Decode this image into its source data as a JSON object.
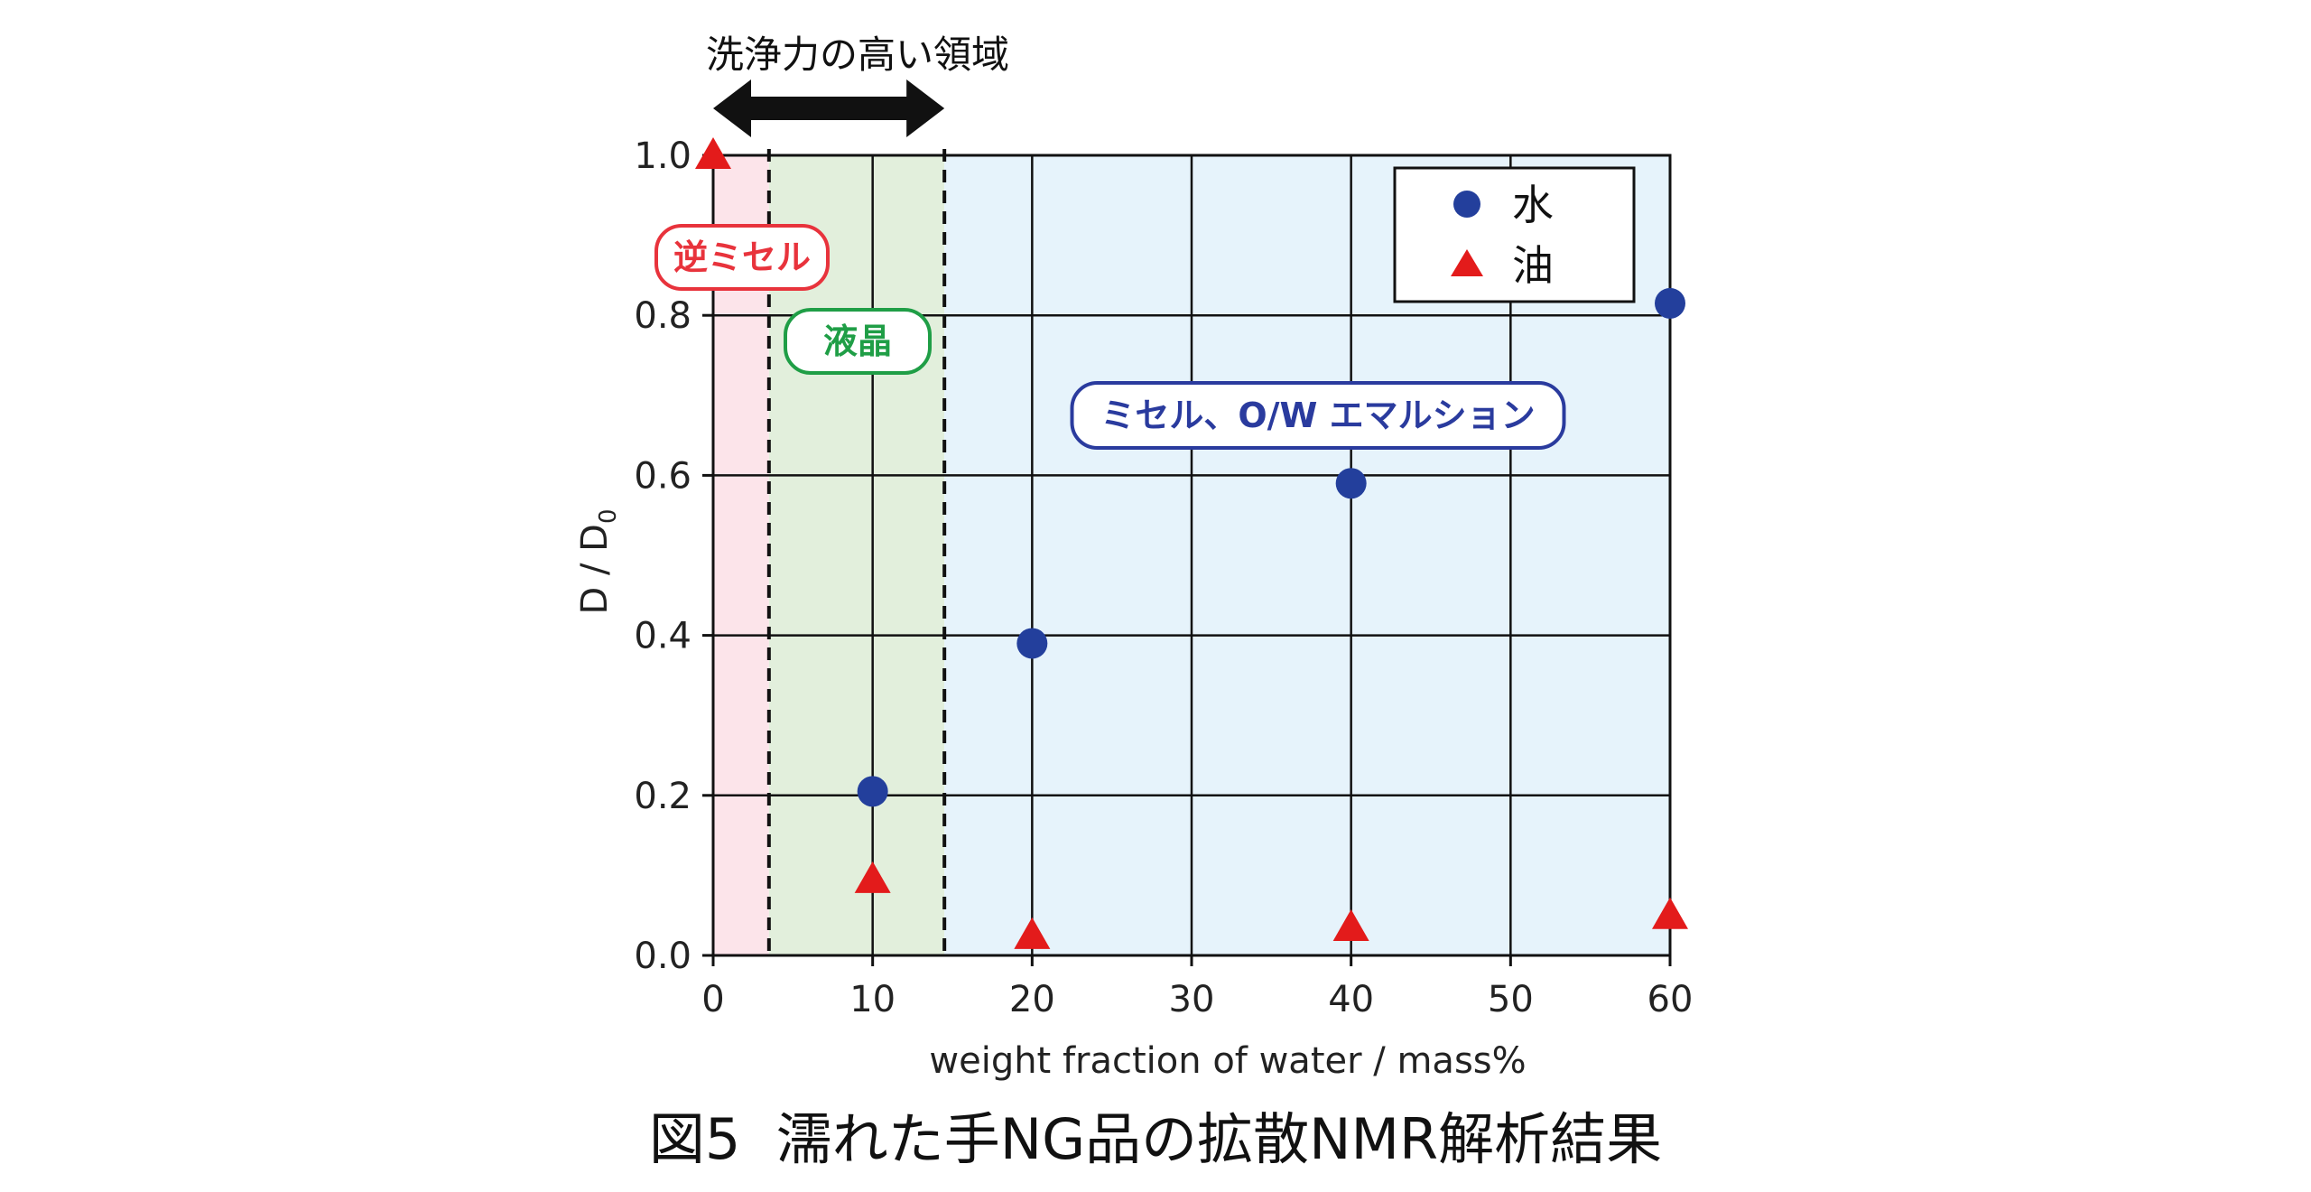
{
  "figure": {
    "caption": "図5  濡れた手NG品の拡散NMR解析結果",
    "top_label": "洗浄力の高い領域"
  },
  "chart_data": {
    "type": "scatter",
    "xlabel": "weight fraction of water / mass%",
    "ylabel": "D / D",
    "ylabel_subscript": "0",
    "xlim": [
      0,
      60
    ],
    "ylim": [
      0,
      1.0
    ],
    "x_ticks": [
      "0",
      "10",
      "20",
      "30",
      "40",
      "50",
      "60"
    ],
    "y_ticks": [
      "0.0",
      "0.2",
      "0.4",
      "0.6",
      "0.8",
      "1.0"
    ],
    "grid": true,
    "legend_position": "top-right",
    "series": [
      {
        "name": "水",
        "marker": "circle",
        "color": "#233f9c",
        "points": [
          {
            "x": 10,
            "y": 0.205
          },
          {
            "x": 20,
            "y": 0.39
          },
          {
            "x": 40,
            "y": 0.59
          },
          {
            "x": 60,
            "y": 0.815
          }
        ]
      },
      {
        "name": "油",
        "marker": "triangle",
        "color": "#e31b1b",
        "points": [
          {
            "x": 0,
            "y": 1.0
          },
          {
            "x": 10,
            "y": 0.095
          },
          {
            "x": 20,
            "y": 0.025
          },
          {
            "x": 40,
            "y": 0.035
          },
          {
            "x": 60,
            "y": 0.05
          }
        ]
      }
    ],
    "regions": [
      {
        "label": "逆ミセル",
        "x_from": 0,
        "x_to": 3.5,
        "fill": "#fce4ea",
        "text_color": "#e8333c"
      },
      {
        "label": "液晶",
        "x_from": 3.5,
        "x_to": 14.5,
        "fill": "#e2efdc",
        "text_color": "#1f9e46"
      },
      {
        "label": "ミセル、O/W エマルション",
        "x_from": 14.5,
        "x_to": 60,
        "fill": "#e6f3fb",
        "text_color": "#2a3b9e"
      }
    ],
    "highlight_range": {
      "x_from": 0,
      "x_to": 14.5
    }
  }
}
